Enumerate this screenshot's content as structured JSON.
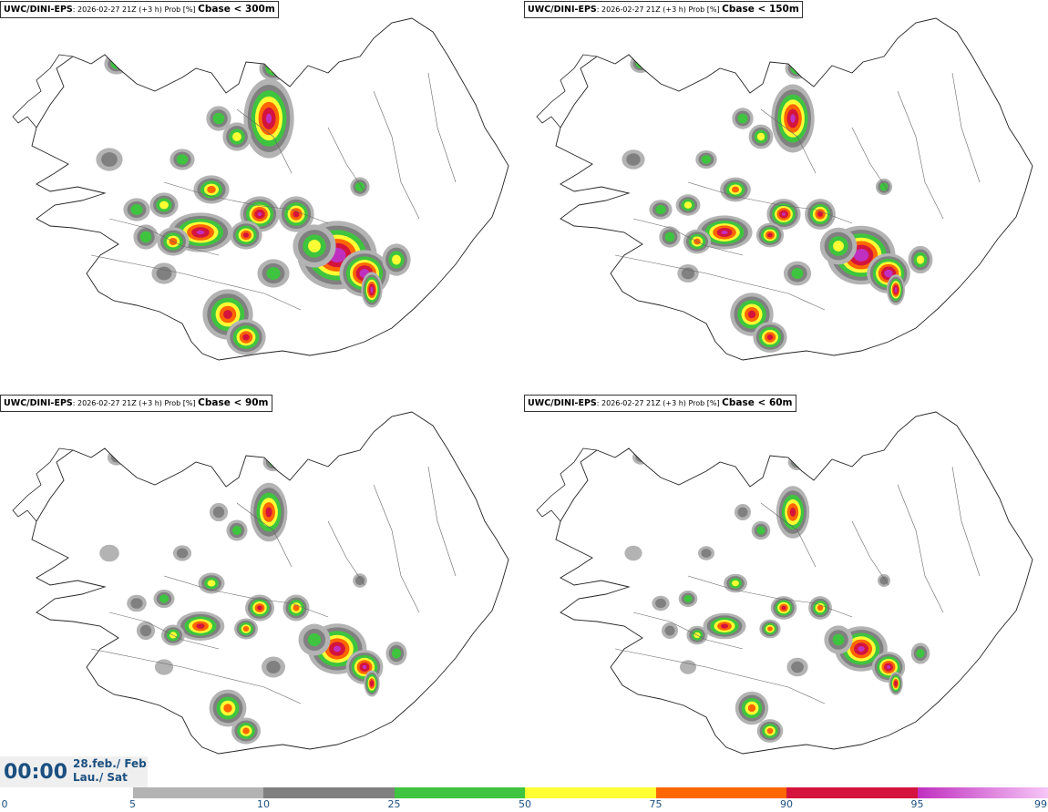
{
  "panels": [
    {
      "model": "UWC/DINI-EPS",
      "info": ": 2026-02-27 21Z (+3 h) Prob [%]",
      "threshold": "Cbase < 300m",
      "scale": 1.0
    },
    {
      "model": "UWC/DINI-EPS",
      "info": ": 2026-02-27 21Z (+3 h) Prob [%]",
      "threshold": "Cbase < 150m",
      "scale": 0.86
    },
    {
      "model": "UWC/DINI-EPS",
      "info": ": 2026-02-27 21Z (+3 h) Prob [%]",
      "threshold": "Cbase < 90m",
      "scale": 0.74
    },
    {
      "model": "UWC/DINI-EPS",
      "info": ": 2026-02-27 21Z (+3 h) Prob [%]",
      "threshold": "Cbase < 60m",
      "scale": 0.66
    }
  ],
  "valid_time": "00:00",
  "date_line1": "28.feb./ Feb",
  "date_line2": "Lau./ Sat",
  "colorbar": {
    "labels": [
      "0",
      "5",
      "10",
      "25",
      "50",
      "75",
      "90",
      "95",
      "99"
    ],
    "segments": [
      {
        "from": "5",
        "to": "10",
        "color": "#b3b3b3"
      },
      {
        "from": "10",
        "to": "25",
        "color": "#808080"
      },
      {
        "from": "25",
        "to": "50",
        "color": "#3ec43e"
      },
      {
        "from": "50",
        "to": "75",
        "color": "#ffff33"
      },
      {
        "from": "75",
        "to": "90",
        "color": "#ff6600"
      },
      {
        "from": "90",
        "to": "95",
        "color": "#d4143c"
      },
      {
        "from": "95",
        "to": "99",
        "color": "#c030c0"
      }
    ]
  }
}
